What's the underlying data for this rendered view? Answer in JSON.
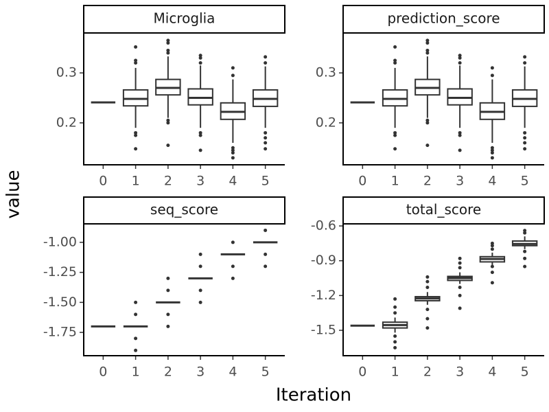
{
  "xlabel": "Iteration",
  "ylabel": "value",
  "chart_data": [
    {
      "type": "box",
      "title": "Microglia",
      "categories": [
        "0",
        "1",
        "2",
        "3",
        "4",
        "5"
      ],
      "color": "#333333",
      "ylim": [
        0.116,
        0.38
      ],
      "yticks": [
        0.2,
        0.3
      ],
      "boxes": [
        {
          "low": 0.241,
          "q1": 0.241,
          "median": 0.241,
          "q3": 0.241,
          "high": 0.241,
          "outliers": []
        },
        {
          "low": 0.19,
          "q1": 0.234,
          "median": 0.248,
          "q3": 0.266,
          "high": 0.31,
          "outliers": [
            0.148,
            0.175,
            0.18,
            0.32,
            0.325,
            0.352
          ]
        },
        {
          "low": 0.21,
          "q1": 0.256,
          "median": 0.27,
          "q3": 0.287,
          "high": 0.333,
          "outliers": [
            0.155,
            0.2,
            0.205,
            0.34,
            0.345,
            0.36,
            0.365
          ]
        },
        {
          "low": 0.19,
          "q1": 0.236,
          "median": 0.25,
          "q3": 0.268,
          "high": 0.315,
          "outliers": [
            0.145,
            0.175,
            0.18,
            0.32,
            0.33,
            0.335
          ]
        },
        {
          "low": 0.16,
          "q1": 0.207,
          "median": 0.222,
          "q3": 0.24,
          "high": 0.287,
          "outliers": [
            0.13,
            0.14,
            0.145,
            0.15,
            0.295,
            0.31
          ]
        },
        {
          "low": 0.19,
          "q1": 0.233,
          "median": 0.248,
          "q3": 0.266,
          "high": 0.313,
          "outliers": [
            0.148,
            0.16,
            0.17,
            0.18,
            0.32,
            0.332
          ]
        }
      ]
    },
    {
      "type": "box",
      "title": "prediction_score",
      "categories": [
        "0",
        "1",
        "2",
        "3",
        "4",
        "5"
      ],
      "color": "#333333",
      "ylim": [
        0.116,
        0.38
      ],
      "yticks": [
        0.2,
        0.3
      ],
      "boxes": [
        {
          "low": 0.241,
          "q1": 0.241,
          "median": 0.241,
          "q3": 0.241,
          "high": 0.241,
          "outliers": []
        },
        {
          "low": 0.19,
          "q1": 0.234,
          "median": 0.248,
          "q3": 0.266,
          "high": 0.31,
          "outliers": [
            0.148,
            0.175,
            0.18,
            0.32,
            0.325,
            0.352
          ]
        },
        {
          "low": 0.21,
          "q1": 0.256,
          "median": 0.27,
          "q3": 0.287,
          "high": 0.333,
          "outliers": [
            0.155,
            0.2,
            0.205,
            0.34,
            0.345,
            0.36,
            0.365
          ]
        },
        {
          "low": 0.19,
          "q1": 0.236,
          "median": 0.25,
          "q3": 0.268,
          "high": 0.315,
          "outliers": [
            0.145,
            0.175,
            0.18,
            0.32,
            0.33,
            0.335
          ]
        },
        {
          "low": 0.16,
          "q1": 0.207,
          "median": 0.222,
          "q3": 0.24,
          "high": 0.287,
          "outliers": [
            0.13,
            0.14,
            0.145,
            0.15,
            0.295,
            0.31
          ]
        },
        {
          "low": 0.19,
          "q1": 0.233,
          "median": 0.248,
          "q3": 0.266,
          "high": 0.313,
          "outliers": [
            0.148,
            0.16,
            0.17,
            0.18,
            0.32,
            0.332
          ]
        }
      ]
    },
    {
      "type": "box",
      "title": "seq_score",
      "categories": [
        "0",
        "1",
        "2",
        "3",
        "4",
        "5"
      ],
      "color": "#333333",
      "ylim": [
        -1.944,
        -0.846
      ],
      "yticks": [
        {
          "value": -1.75,
          "label": "-1.75"
        },
        {
          "value": -1.5,
          "label": "-1.50"
        },
        {
          "value": -1.25,
          "label": "-1.25"
        },
        {
          "value": -1,
          "label": "-1.00"
        }
      ],
      "boxes": [
        {
          "low": -1.7,
          "q1": -1.7,
          "median": -1.7,
          "q3": -1.7,
          "high": -1.7,
          "outliers": []
        },
        {
          "low": -1.7,
          "q1": -1.7,
          "median": -1.7,
          "q3": -1.7,
          "high": -1.7,
          "outliers": [
            -1.9,
            -1.8,
            -1.6,
            -1.5
          ]
        },
        {
          "low": -1.5,
          "q1": -1.5,
          "median": -1.5,
          "q3": -1.5,
          "high": -1.5,
          "outliers": [
            -1.7,
            -1.6,
            -1.4,
            -1.3
          ]
        },
        {
          "low": -1.3,
          "q1": -1.3,
          "median": -1.3,
          "q3": -1.3,
          "high": -1.3,
          "outliers": [
            -1.5,
            -1.4,
            -1.2,
            -1.1
          ]
        },
        {
          "low": -1.1,
          "q1": -1.1,
          "median": -1.1,
          "q3": -1.1,
          "high": -1.1,
          "outliers": [
            -1.3,
            -1.2,
            -1
          ]
        },
        {
          "low": -1,
          "q1": -1,
          "median": -1,
          "q3": -1,
          "high": -1,
          "outliers": [
            -1.2,
            -1.1,
            -0.9
          ]
        }
      ]
    },
    {
      "type": "box",
      "title": "total_score",
      "categories": [
        "0",
        "1",
        "2",
        "3",
        "4",
        "5"
      ],
      "color": "#333333",
      "ylim": [
        -1.719,
        -0.582
      ],
      "yticks": [
        -1.5,
        -1.2,
        -0.9,
        -0.6
      ],
      "boxes": [
        {
          "low": -1.46,
          "q1": -1.46,
          "median": -1.46,
          "q3": -1.46,
          "high": -1.46,
          "outliers": []
        },
        {
          "low": -1.52,
          "q1": -1.48,
          "median": -1.455,
          "q3": -1.43,
          "high": -1.39,
          "outliers": [
            -1.65,
            -1.6,
            -1.55,
            -1.35,
            -1.3,
            -1.23
          ]
        },
        {
          "low": -1.28,
          "q1": -1.245,
          "median": -1.225,
          "q3": -1.21,
          "high": -1.17,
          "outliers": [
            -1.48,
            -1.4,
            -1.32,
            -1.13,
            -1.08,
            -1.04
          ]
        },
        {
          "low": -1.1,
          "q1": -1.07,
          "median": -1.05,
          "q3": -1.035,
          "high": -1,
          "outliers": [
            -1.31,
            -1.2,
            -1.13,
            -0.96,
            -0.92,
            -0.88
          ]
        },
        {
          "low": -0.94,
          "q1": -0.91,
          "median": -0.885,
          "q3": -0.865,
          "high": -0.83,
          "outliers": [
            -1.09,
            -1,
            -0.95,
            -0.8,
            -0.77,
            -0.75
          ]
        },
        {
          "low": -0.8,
          "q1": -0.77,
          "median": -0.755,
          "q3": -0.73,
          "high": -0.69,
          "outliers": [
            -0.95,
            -0.88,
            -0.82,
            -0.66,
            -0.64
          ]
        }
      ]
    }
  ]
}
